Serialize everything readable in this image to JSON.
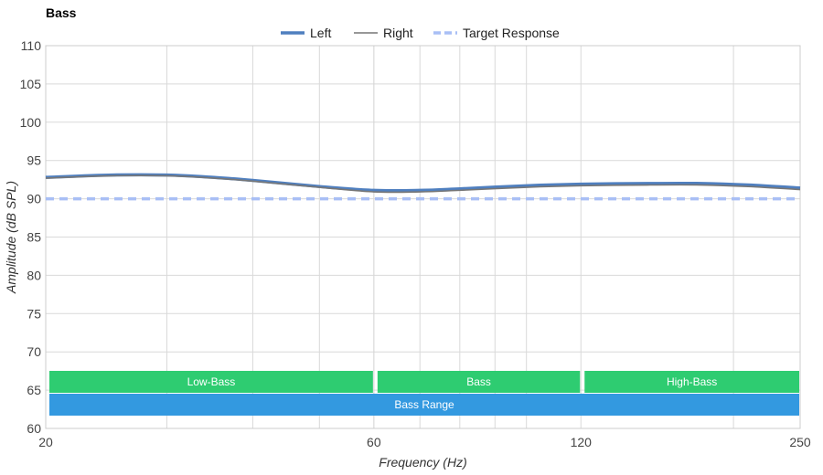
{
  "chart_data": {
    "type": "line",
    "title": "Bass",
    "xlabel": "Frequency (Hz)",
    "ylabel": "Amplitude (dB SPL)",
    "x_scale": "log",
    "xlim": [
      20,
      250
    ],
    "ylim": [
      60,
      110
    ],
    "x_ticks": [
      20,
      60,
      120,
      250
    ],
    "y_ticks": [
      60,
      65,
      70,
      75,
      80,
      85,
      90,
      95,
      100,
      105,
      110
    ],
    "grid": true,
    "legend_position": "top-center",
    "series": [
      {
        "name": "Left",
        "color": "#4f7fbf",
        "style": "solid-thick",
        "x": [
          20,
          25,
          30,
          35,
          40,
          50,
          60,
          70,
          80,
          100,
          120,
          150,
          180,
          210,
          250
        ],
        "y": [
          92.8,
          93.1,
          93.1,
          92.8,
          92.4,
          91.6,
          91.1,
          91.1,
          91.3,
          91.7,
          91.9,
          92.0,
          92.0,
          91.8,
          91.4
        ]
      },
      {
        "name": "Right",
        "color": "#777777",
        "style": "solid-thin",
        "x": [
          20,
          25,
          30,
          35,
          40,
          50,
          60,
          70,
          80,
          100,
          120,
          150,
          180,
          210,
          250
        ],
        "y": [
          92.7,
          93.0,
          93.0,
          92.7,
          92.3,
          91.5,
          90.9,
          90.9,
          91.1,
          91.5,
          91.7,
          91.8,
          91.8,
          91.6,
          91.2
        ]
      },
      {
        "name": "Target Response",
        "color": "#a9bff5",
        "style": "dashed",
        "x": [
          20,
          250
        ],
        "y": [
          90,
          90
        ]
      }
    ],
    "bands": [
      {
        "label": "Low-Bass",
        "x_start": 20,
        "x_end": 60,
        "color": "#2ecc71",
        "row": 0
      },
      {
        "label": "Bass",
        "x_start": 60,
        "x_end": 120,
        "color": "#2ecc71",
        "row": 0
      },
      {
        "label": "High-Bass",
        "x_start": 120,
        "x_end": 250,
        "color": "#2ecc71",
        "row": 0
      },
      {
        "label": "Bass Range",
        "x_start": 20,
        "x_end": 250,
        "color": "#3399e0",
        "row": 1
      }
    ]
  }
}
